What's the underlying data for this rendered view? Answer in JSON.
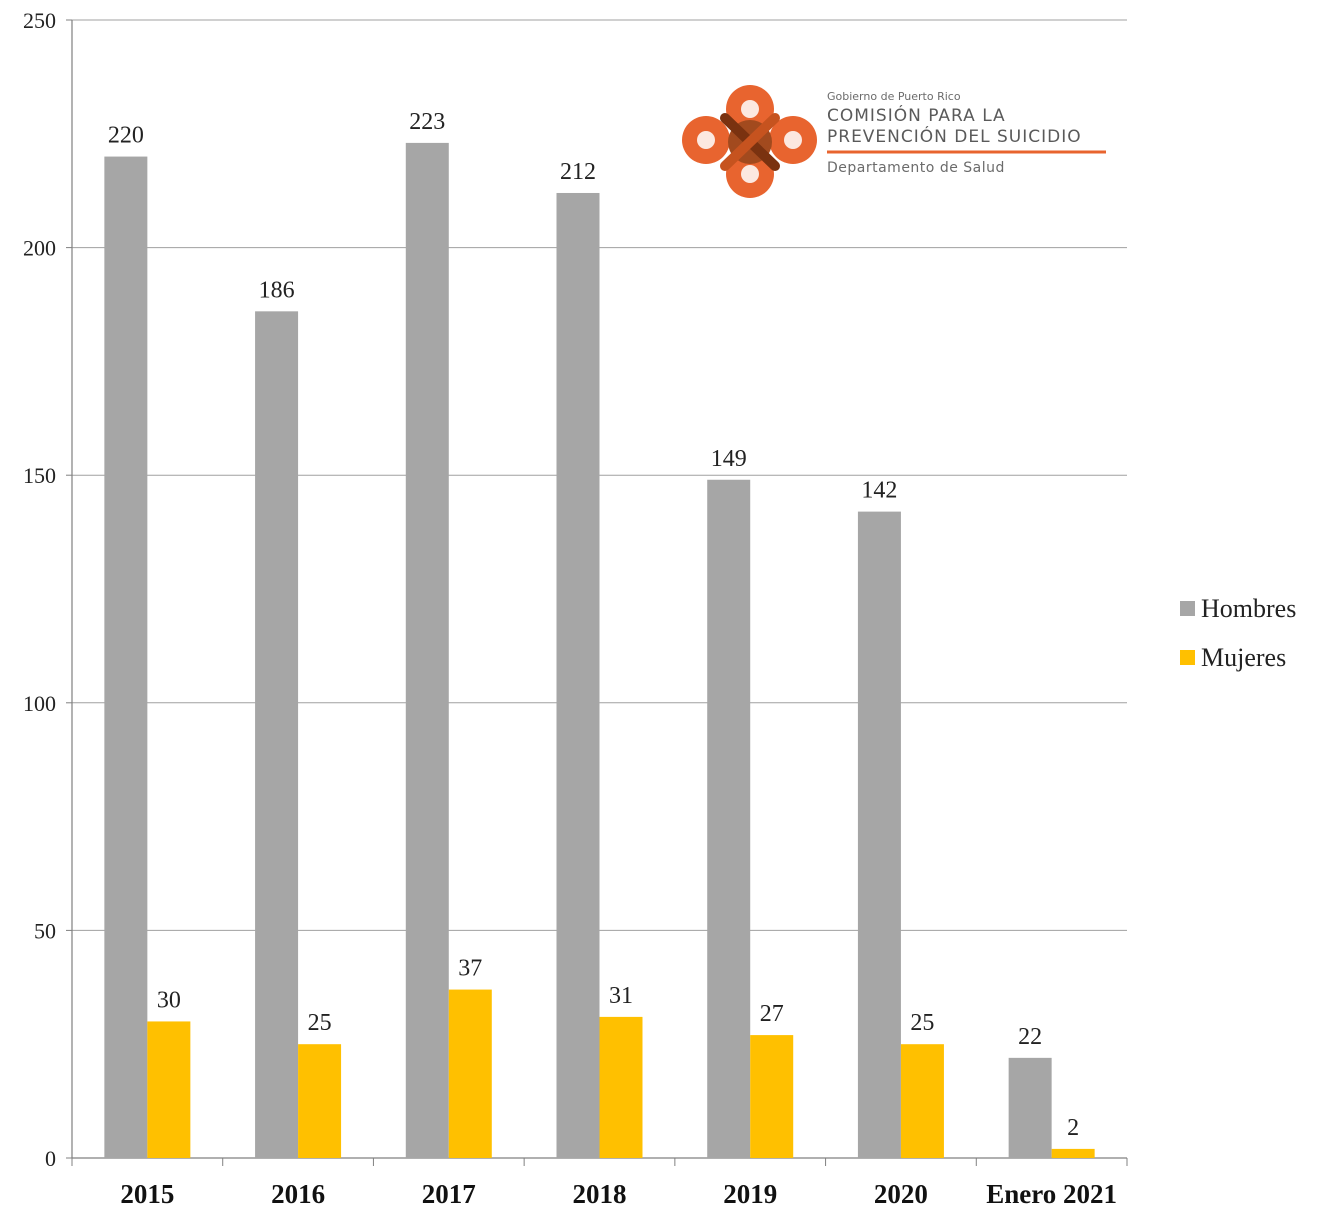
{
  "chart_data": {
    "type": "bar",
    "categories": [
      "2015",
      "2016",
      "2017",
      "2018",
      "2019",
      "2020",
      "Enero 2021"
    ],
    "series": [
      {
        "name": "Hombres",
        "color": "#a6a6a6",
        "values": [
          220,
          186,
          223,
          212,
          149,
          142,
          22
        ]
      },
      {
        "name": "Mujeres",
        "color": "#ffc000",
        "values": [
          30,
          25,
          37,
          31,
          27,
          25,
          2
        ]
      }
    ],
    "ylim": [
      0,
      250
    ],
    "yticks": [
      0,
      50,
      100,
      150,
      200,
      250
    ],
    "grid": true,
    "legend_position": "right"
  },
  "logo": {
    "line1": "Gobierno de Puerto Rico",
    "line2": "COMISIÓN PARA LA",
    "line3": "PREVENCIÓN DEL SUICIDIO",
    "line4": "Departamento de Salud",
    "accent_color": "#e8642f",
    "dark_color": "#a24a1e"
  }
}
